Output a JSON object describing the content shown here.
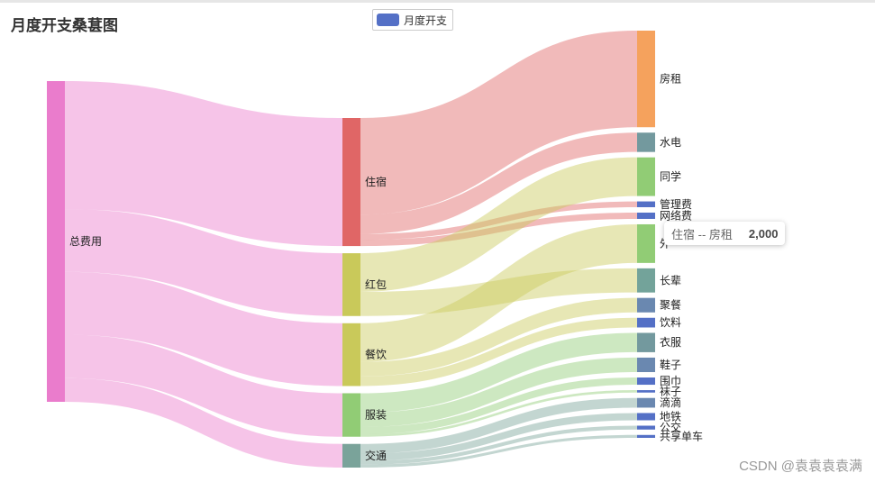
{
  "page": {
    "title": "月度开支桑葚图",
    "watermark": "CSDN @袁袁袁袁满"
  },
  "legend": {
    "label": "月度开支",
    "color": "#5470c6"
  },
  "tooltip": {
    "name": "住宿 -- 房租",
    "value": "2,000"
  },
  "chart_data": {
    "type": "sankey",
    "title": "月度开支桑葚图",
    "legend": [
      "月度开支"
    ],
    "nodes": [
      {
        "name": "总费用",
        "color": "#ea7ccc"
      },
      {
        "name": "住宿",
        "color": "#e06666"
      },
      {
        "name": "红包",
        "color": "#c9c95a"
      },
      {
        "name": "餐饮",
        "color": "#c9c95a"
      },
      {
        "name": "服装",
        "color": "#91cc75"
      },
      {
        "name": "交通",
        "color": "#7aa39a"
      },
      {
        "name": "房租",
        "color": "#f5a25d"
      },
      {
        "name": "水电",
        "color": "#73999e"
      },
      {
        "name": "同学",
        "color": "#91cc75"
      },
      {
        "name": "管理费",
        "color": "#5470c6"
      },
      {
        "name": "网络费",
        "color": "#5470c6"
      },
      {
        "name": "外",
        "color": "#91cc75"
      },
      {
        "name": "长辈",
        "color": "#73a39a"
      },
      {
        "name": "聚餐",
        "color": "#6a88b0"
      },
      {
        "name": "饮料",
        "color": "#5470c6"
      },
      {
        "name": "衣服",
        "color": "#73999e"
      },
      {
        "name": "鞋子",
        "color": "#6a88b0"
      },
      {
        "name": "围巾",
        "color": "#5470c6"
      },
      {
        "name": "袜子",
        "color": "#5470c6"
      },
      {
        "name": "滴滴",
        "color": "#6a88b0"
      },
      {
        "name": "地铁",
        "color": "#5470c6"
      },
      {
        "name": "公交",
        "color": "#5470c6"
      },
      {
        "name": "共享单车",
        "color": "#5470c6"
      }
    ],
    "links": [
      {
        "source": "总费用",
        "target": "住宿",
        "value": 2650
      },
      {
        "source": "总费用",
        "target": "红包",
        "value": 1300
      },
      {
        "source": "总费用",
        "target": "餐饮",
        "value": 1300
      },
      {
        "source": "总费用",
        "target": "服装",
        "value": 900
      },
      {
        "source": "总费用",
        "target": "交通",
        "value": 490
      },
      {
        "source": "住宿",
        "target": "房租",
        "value": 2000
      },
      {
        "source": "住宿",
        "target": "水电",
        "value": 400
      },
      {
        "source": "住宿",
        "target": "管理费",
        "value": 120
      },
      {
        "source": "住宿",
        "target": "网络费",
        "value": 130
      },
      {
        "source": "红包",
        "target": "同学",
        "value": 800
      },
      {
        "source": "红包",
        "target": "长辈",
        "value": 500
      },
      {
        "source": "餐饮",
        "target": "外",
        "value": 800
      },
      {
        "source": "餐饮",
        "target": "聚餐",
        "value": 300
      },
      {
        "source": "餐饮",
        "target": "饮料",
        "value": 200
      },
      {
        "source": "服装",
        "target": "衣服",
        "value": 400
      },
      {
        "source": "服装",
        "target": "鞋子",
        "value": 300
      },
      {
        "source": "服装",
        "target": "围巾",
        "value": 150
      },
      {
        "source": "服装",
        "target": "袜子",
        "value": 50
      },
      {
        "source": "交通",
        "target": "滴滴",
        "value": 200
      },
      {
        "source": "交通",
        "target": "地铁",
        "value": 150
      },
      {
        "source": "交通",
        "target": "公交",
        "value": 80
      },
      {
        "source": "交通",
        "target": "共享单车",
        "value": 60
      }
    ]
  }
}
